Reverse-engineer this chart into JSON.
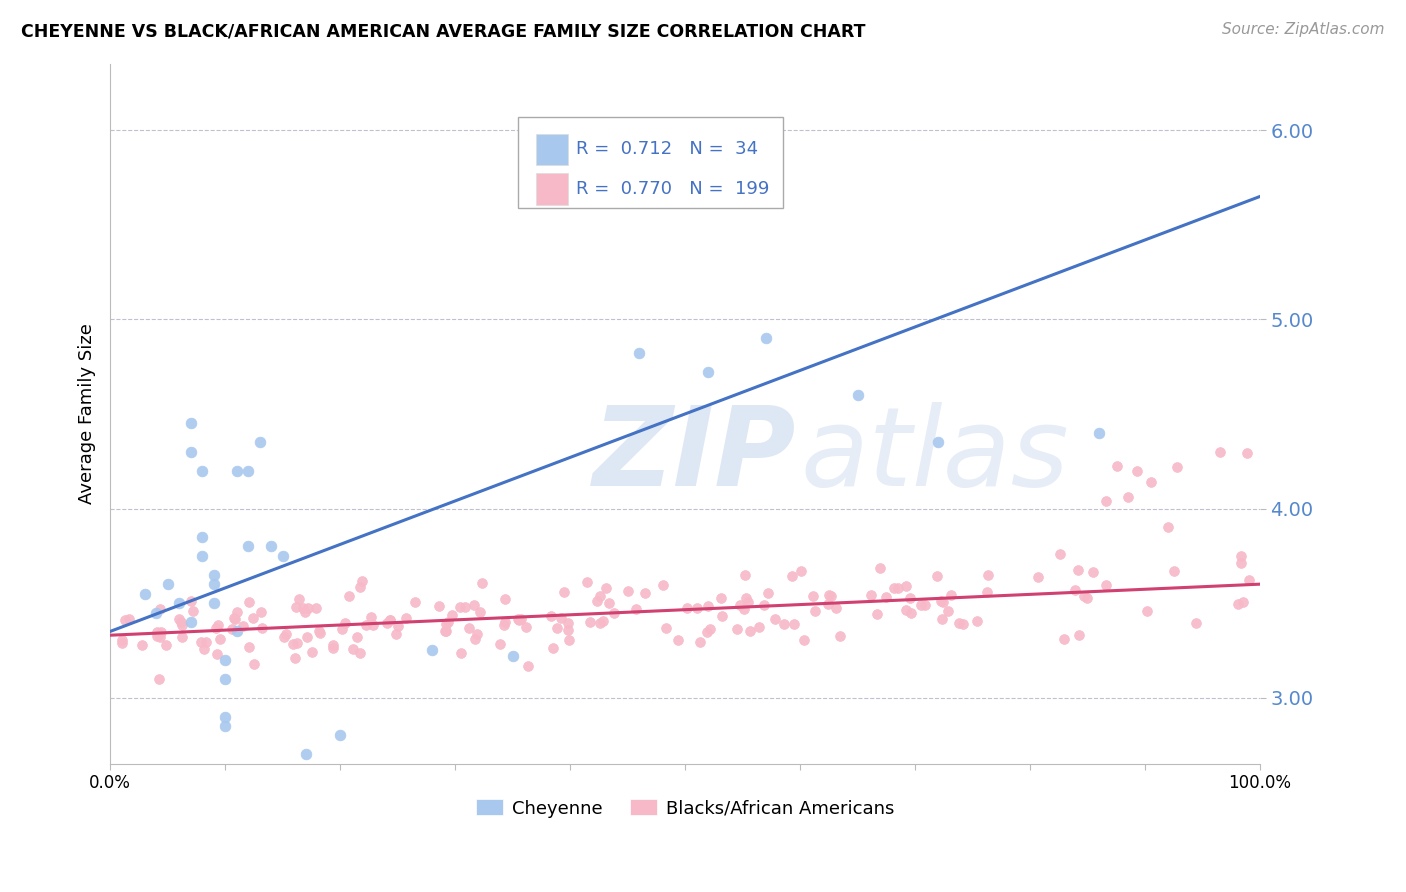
{
  "title": "CHEYENNE VS BLACK/AFRICAN AMERICAN AVERAGE FAMILY SIZE CORRELATION CHART",
  "source": "Source: ZipAtlas.com",
  "ylabel": "Average Family Size",
  "xlim": [
    0,
    1
  ],
  "ylim": [
    2.65,
    6.35
  ],
  "yticks": [
    3.0,
    4.0,
    5.0,
    6.0
  ],
  "xticks": [
    0.0,
    0.1,
    0.2,
    0.3,
    0.4,
    0.5,
    0.6,
    0.7,
    0.8,
    0.9,
    1.0
  ],
  "xtick_labels": [
    "0.0%",
    "",
    "",
    "",
    "",
    "",
    "",
    "",
    "",
    "",
    "100.0%"
  ],
  "legend_R": [
    0.712,
    0.77
  ],
  "legend_N": [
    34,
    199
  ],
  "cheyenne_color": "#a8c8ee",
  "pink_color": "#f7b8c8",
  "blue_line_color": "#4472c4",
  "pink_line_color": "#d04070",
  "watermark_zip": "ZIP",
  "watermark_atlas": "atlas",
  "background_color": "#ffffff",
  "grid_color": "#c0c0d0",
  "cheyenne_x": [
    0.03,
    0.04,
    0.05,
    0.06,
    0.07,
    0.07,
    0.07,
    0.08,
    0.08,
    0.08,
    0.09,
    0.09,
    0.09,
    0.1,
    0.1,
    0.1,
    0.1,
    0.11,
    0.11,
    0.12,
    0.12,
    0.13,
    0.14,
    0.15,
    0.17,
    0.2,
    0.28,
    0.35,
    0.46,
    0.52,
    0.57,
    0.65,
    0.72,
    0.86
  ],
  "cheyenne_y": [
    3.55,
    3.45,
    3.6,
    3.5,
    3.4,
    4.3,
    4.45,
    3.75,
    3.85,
    4.2,
    3.65,
    3.5,
    3.6,
    2.85,
    2.9,
    3.1,
    3.2,
    3.35,
    4.2,
    3.8,
    4.2,
    4.35,
    3.8,
    3.75,
    2.7,
    2.8,
    3.25,
    3.22,
    4.82,
    4.72,
    4.9,
    4.6,
    4.35,
    4.4
  ],
  "blue_line_x0": 0.0,
  "blue_line_y0": 3.35,
  "blue_line_x1": 1.0,
  "blue_line_y1": 5.65,
  "pink_line_x0": 0.0,
  "pink_line_y0": 3.33,
  "pink_line_x1": 1.0,
  "pink_line_y1": 3.6
}
